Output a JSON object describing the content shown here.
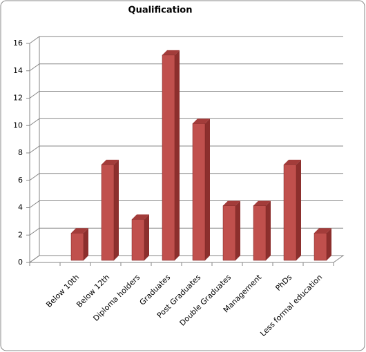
{
  "chart_data": {
    "type": "bar3d",
    "title": "Qualification",
    "categories": [
      null,
      "Below 10th",
      "Below 12th",
      "Diploma holders",
      "Graduates",
      "Post Graduates",
      "Double Graduates",
      "Management",
      "PhDs",
      "Less formal education"
    ],
    "values": [
      null,
      2,
      7,
      3,
      15,
      10,
      4,
      4,
      7,
      2
    ],
    "color": "#c0504d",
    "ylim": [
      0,
      16
    ],
    "yticks": [
      0,
      2,
      4,
      6,
      8,
      10,
      12,
      14,
      16
    ],
    "grid": true
  }
}
